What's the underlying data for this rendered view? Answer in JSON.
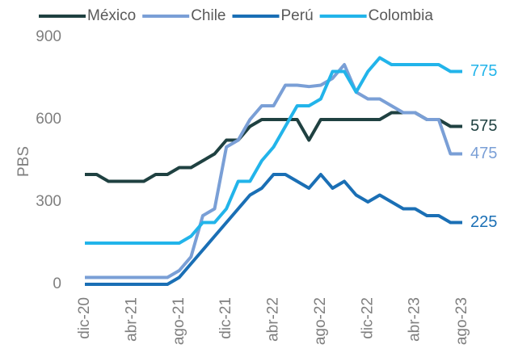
{
  "chart_data": {
    "type": "line",
    "y_label": "PBS",
    "categories": [
      "dic-20",
      null,
      null,
      null,
      "abr-21",
      null,
      null,
      null,
      "ago-21",
      null,
      null,
      null,
      "dic-21",
      null,
      null,
      null,
      "abr-22",
      null,
      null,
      null,
      "ago-22",
      null,
      null,
      null,
      "dic-22",
      null,
      null,
      null,
      "abr-23",
      null,
      null,
      null,
      "ago-23"
    ],
    "series": [
      {
        "name": "México",
        "color": "#1f4141",
        "values": [
          400,
          400,
          375,
          375,
          375,
          375,
          400,
          400,
          425,
          425,
          450,
          475,
          525,
          525,
          575,
          600,
          600,
          600,
          600,
          525,
          600,
          600,
          600,
          600,
          600,
          600,
          625,
          625,
          625,
          600,
          600,
          575,
          575
        ]
      },
      {
        "name": "Chile",
        "color": "#7a9fd6",
        "values": [
          25,
          25,
          25,
          25,
          25,
          25,
          25,
          25,
          50,
          100,
          250,
          275,
          500,
          525,
          600,
          650,
          650,
          725,
          725,
          720,
          725,
          750,
          800,
          700,
          675,
          675,
          650,
          625,
          625,
          600,
          600,
          475,
          475
        ]
      },
      {
        "name": "Perú",
        "color": "#1a6fb5",
        "values": [
          0,
          0,
          0,
          0,
          0,
          0,
          0,
          0,
          25,
          75,
          125,
          175,
          225,
          275,
          325,
          350,
          400,
          400,
          375,
          350,
          400,
          350,
          375,
          325,
          300,
          325,
          300,
          275,
          275,
          250,
          250,
          225,
          225
        ]
      },
      {
        "name": "Colombia",
        "color": "#22b4ea",
        "values": [
          150,
          150,
          150,
          150,
          150,
          150,
          150,
          150,
          150,
          175,
          225,
          225,
          275,
          375,
          375,
          450,
          500,
          575,
          650,
          650,
          675,
          775,
          775,
          700,
          775,
          825,
          800,
          800,
          800,
          800,
          800,
          775,
          775
        ]
      }
    ],
    "ylim": [
      0,
      900
    ],
    "yticks": [
      0,
      300,
      600,
      900
    ],
    "grid": false,
    "legend": "top"
  }
}
